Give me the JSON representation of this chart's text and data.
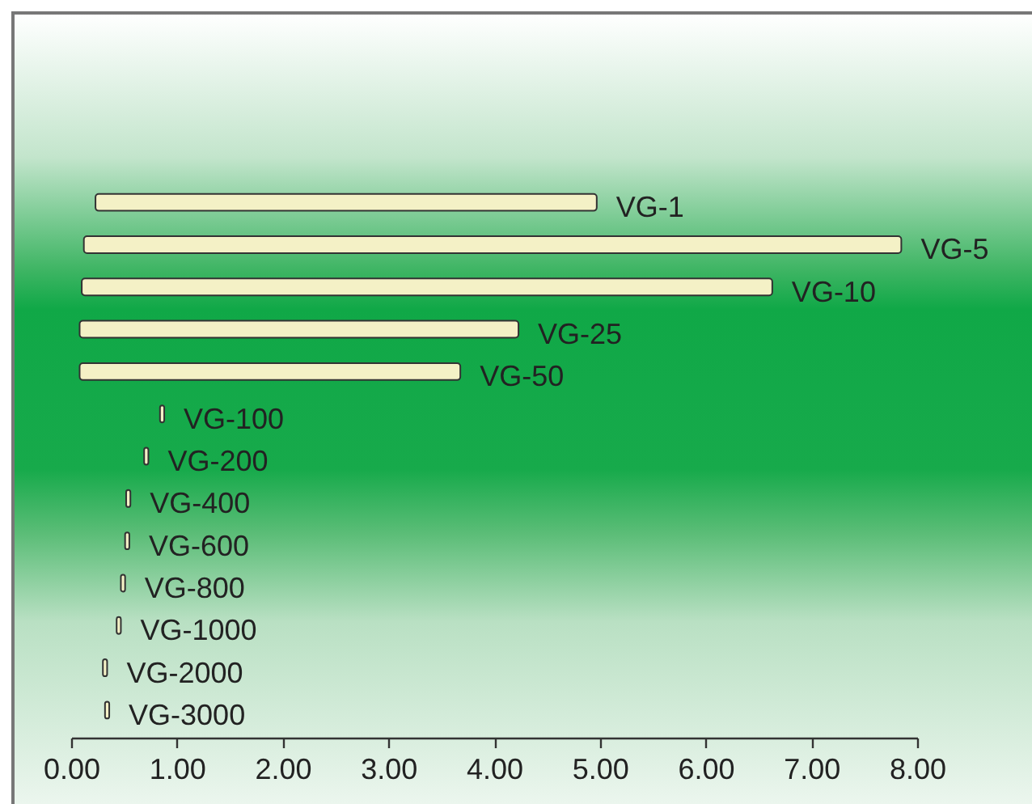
{
  "chart_data": {
    "type": "bar",
    "orientation": "horizontal",
    "categories": [
      "VG-1",
      "VG-5",
      "VG-10",
      "VG-25",
      "VG-50",
      "VG-100",
      "VG-200",
      "VG-400",
      "VG-600",
      "VG-800",
      "VG-1000",
      "VG-2000",
      "VG-3000"
    ],
    "base": [
      0.23,
      0.12,
      0.1,
      0.08,
      0.08,
      0.84,
      0.69,
      0.52,
      0.51,
      0.47,
      0.43,
      0.3,
      0.32
    ],
    "values": [
      4.74,
      7.73,
      6.53,
      4.15,
      3.6,
      0.04,
      0.04,
      0.04,
      0.04,
      0.04,
      0.04,
      0.04,
      0.04
    ],
    "color": "#f4f1c6",
    "xlim": [
      0,
      8
    ],
    "xticks": [
      {
        "value": 0,
        "label": "0.00"
      },
      {
        "value": 1,
        "label": "1.00"
      },
      {
        "value": 2,
        "label": "2.00"
      },
      {
        "value": 3,
        "label": "3.00"
      },
      {
        "value": 4,
        "label": "4.00"
      },
      {
        "value": 5,
        "label": "5.00"
      },
      {
        "value": 6,
        "label": "6.00"
      },
      {
        "value": 7,
        "label": "7.00"
      },
      {
        "value": 8,
        "label": "8.00"
      }
    ]
  }
}
